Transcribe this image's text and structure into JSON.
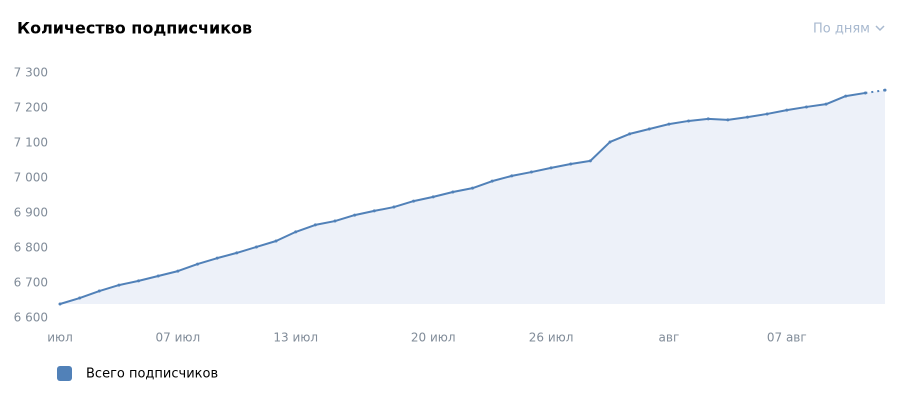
{
  "chart_data": {
    "type": "line",
    "title": "Количество подписчиков",
    "period_selector": "По дням",
    "categories": [
      "июл",
      null,
      null,
      null,
      null,
      null,
      "07 июл",
      null,
      null,
      null,
      null,
      null,
      "13 июл",
      null,
      null,
      null,
      null,
      null,
      null,
      "20 июл",
      null,
      null,
      null,
      null,
      null,
      "26 июл",
      null,
      null,
      null,
      null,
      null,
      "авг",
      null,
      null,
      null,
      null,
      null,
      "07 авг",
      null,
      null,
      null,
      null,
      null
    ],
    "series": [
      {
        "name": "Всего подписчиков",
        "color": "#5181b8",
        "values": [
          6640,
          6657,
          6677,
          6694,
          6706,
          6720,
          6734,
          6754,
          6771,
          6786,
          6803,
          6820,
          6846,
          6866,
          6877,
          6894,
          6906,
          6917,
          6934,
          6946,
          6960,
          6971,
          6991,
          7006,
          7017,
          7029,
          7040,
          7049,
          7103,
          7126,
          7140,
          7154,
          7163,
          7169,
          7166,
          7174,
          7183,
          7194,
          7203,
          7211,
          7234,
          7243,
          7251
        ]
      }
    ],
    "ylim": [
      6600,
      7300
    ],
    "yticks": [
      {
        "value": 6600,
        "label": "6 600"
      },
      {
        "value": 6700,
        "label": "6 700"
      },
      {
        "value": 6800,
        "label": "6 800"
      },
      {
        "value": 6900,
        "label": "6 900"
      },
      {
        "value": 7000,
        "label": "7 000"
      },
      {
        "value": 7100,
        "label": "7 100"
      },
      {
        "value": 7200,
        "label": "7 200"
      },
      {
        "value": 7300,
        "label": "7 300"
      }
    ],
    "fill_color": "#edf1f9"
  }
}
